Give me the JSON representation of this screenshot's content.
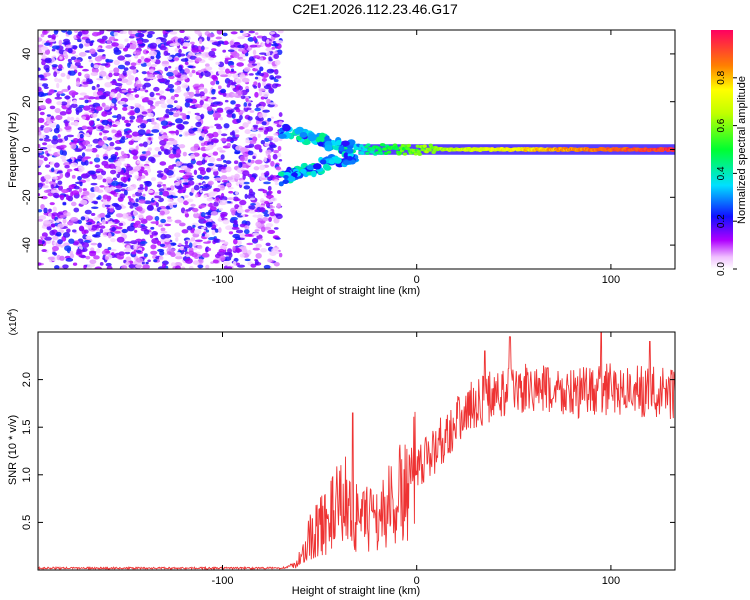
{
  "title": "C2E1.2026.112.23.46.G17",
  "colors": {
    "snr_line": "#ee3333",
    "axis": "#000000",
    "background": "#ffffff"
  },
  "chart_data": [
    {
      "type": "heatmap",
      "title": "C2E1.2026.112.23.46.G17",
      "xlabel": "Height of straight line (km)",
      "ylabel": "Frequency (Hz)",
      "xlim": [
        -195,
        133
      ],
      "ylim": [
        -50,
        50
      ],
      "xticks": [
        -100,
        0,
        100
      ],
      "xtick_labels": [
        "-100",
        "0",
        "100"
      ],
      "yticks": [
        -40,
        -20,
        0,
        20,
        40
      ],
      "ytick_labels": [
        "-40",
        "-20",
        "0",
        "20",
        "40"
      ],
      "colorbar": {
        "label": "Normalized spectral amplitude",
        "range": [
          0,
          1
        ],
        "ticks": [
          0.0,
          0.2,
          0.4,
          0.6,
          0.8
        ],
        "tick_labels": [
          "0.0",
          "0.2",
          "0.4",
          "0.6",
          "0.8"
        ]
      },
      "regions": [
        {
          "name": "noise",
          "x_range": [
            -195,
            -70
          ],
          "freq_range": [
            -50,
            50
          ],
          "amplitude": [
            0.05,
            0.25
          ]
        },
        {
          "name": "multipath-upper",
          "x_range": [
            -70,
            -30
          ],
          "freq_center_start": 8,
          "freq_center_end": 0,
          "amplitude": [
            0.2,
            0.45
          ]
        },
        {
          "name": "multipath-lower",
          "x_range": [
            -70,
            -30
          ],
          "freq_center_start": -12,
          "freq_center_end": -2,
          "amplitude": [
            0.2,
            0.45
          ]
        },
        {
          "name": "direct-signal",
          "x_range": [
            -30,
            133
          ],
          "freq_center": 0,
          "amplitude": [
            0.3,
            0.95
          ]
        }
      ]
    },
    {
      "type": "line",
      "xlabel": "Height of straight line (km)",
      "ylabel": "SNR (10 * v/v)",
      "yscale_label": "(x10",
      "yscale_exp": "4",
      "yscale_close": ")",
      "xlim": [
        -195,
        133
      ],
      "ylim": [
        0,
        2.5
      ],
      "xticks": [
        -100,
        0,
        100
      ],
      "xtick_labels": [
        "-100",
        "0",
        "100"
      ],
      "yticks": [
        0.5,
        1.0,
        1.5,
        2.0
      ],
      "ytick_labels": [
        "0.5",
        "1.0",
        "1.5",
        "2.0"
      ],
      "envelope": [
        {
          "x": -195,
          "y": 0.02
        },
        {
          "x": -70,
          "y": 0.02
        },
        {
          "x": -62,
          "y": 0.05
        },
        {
          "x": -55,
          "y": 0.35
        },
        {
          "x": -45,
          "y": 0.55
        },
        {
          "x": -37,
          "y": 0.75
        },
        {
          "x": -30,
          "y": 0.5
        },
        {
          "x": -20,
          "y": 0.55
        },
        {
          "x": -10,
          "y": 0.75
        },
        {
          "x": 0,
          "y": 1.0
        },
        {
          "x": 10,
          "y": 1.3
        },
        {
          "x": 20,
          "y": 1.55
        },
        {
          "x": 30,
          "y": 1.75
        },
        {
          "x": 40,
          "y": 1.85
        },
        {
          "x": 60,
          "y": 1.9
        },
        {
          "x": 80,
          "y": 1.85
        },
        {
          "x": 100,
          "y": 1.9
        },
        {
          "x": 133,
          "y": 1.85
        }
      ],
      "peaks": [
        {
          "x": -33,
          "y": 1.65
        },
        {
          "x": 35,
          "y": 2.3
        },
        {
          "x": 48,
          "y": 2.45
        },
        {
          "x": 95,
          "y": 2.5
        },
        {
          "x": 120,
          "y": 2.4
        }
      ]
    }
  ]
}
